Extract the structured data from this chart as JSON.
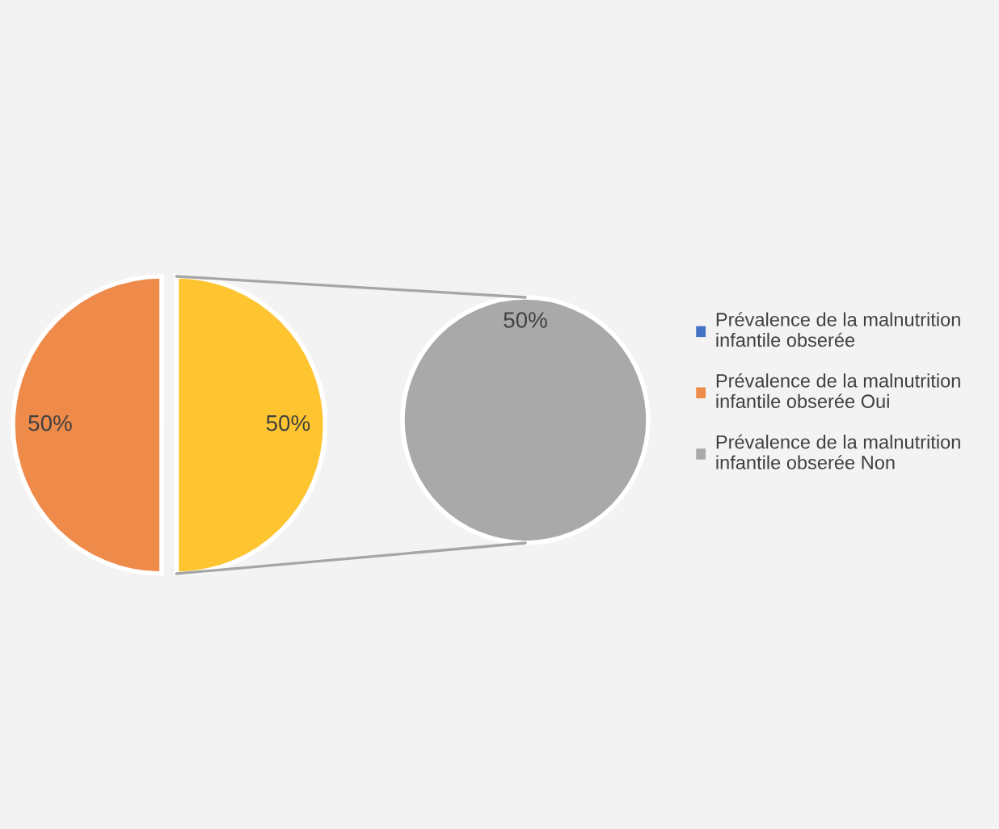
{
  "chart_data": [
    {
      "type": "pie",
      "categories": [
        "Prévalence de la malnutrition infantile obserée",
        "Prévalence de la malnutrition infantile obserée Oui",
        null
      ],
      "values": [
        0,
        50,
        50
      ],
      "colors": [
        "#4472c4",
        "#ee8a4a",
        "#ffc531"
      ],
      "value_labels": [
        null,
        "50%",
        "50%"
      ],
      "legend": "right"
    },
    {
      "type": "pie",
      "categories": [
        "Prévalence de la malnutrition infantile obserée Non"
      ],
      "values": [
        50
      ],
      "colors": [
        "#a9a9a9"
      ],
      "value_labels": [
        "50%"
      ],
      "legend": "right"
    }
  ]
}
